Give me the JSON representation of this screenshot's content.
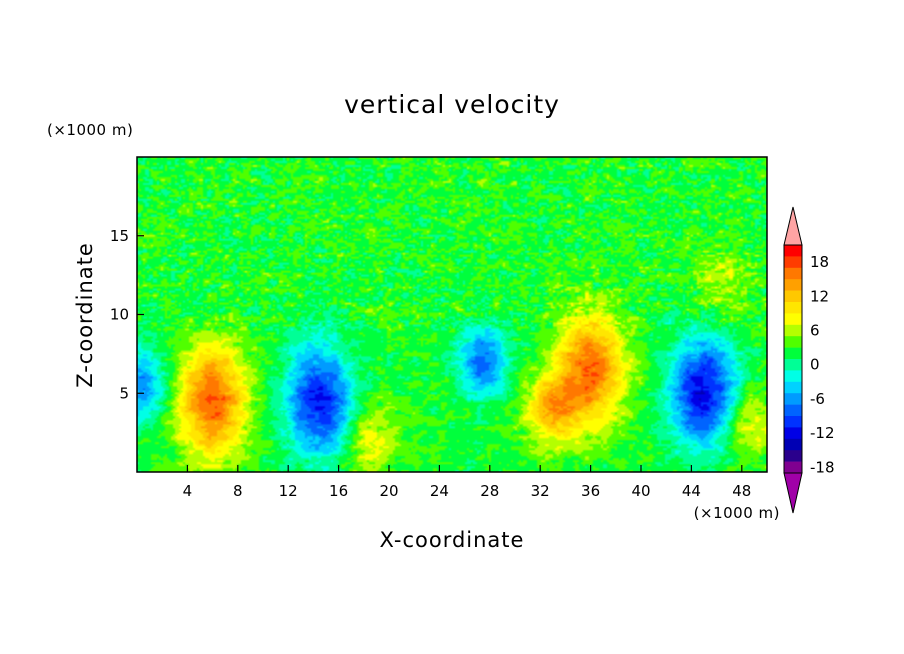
{
  "chart_data": {
    "type": "heatmap",
    "title": "vertical velocity",
    "xlabel": "X-coordinate",
    "ylabel": "Z-coordinate",
    "x_unit": "(×1000 m)",
    "y_unit": "(×1000 m)",
    "xlim": [
      0,
      50
    ],
    "ylim": [
      0,
      20
    ],
    "x_ticks": [
      4,
      8,
      12,
      16,
      20,
      24,
      28,
      32,
      36,
      40,
      44,
      48
    ],
    "y_ticks": [
      5,
      10,
      15
    ],
    "grid": false,
    "colorbar": {
      "levels": [
        -20,
        -18,
        -16,
        -14,
        -12,
        -10,
        -8,
        -6,
        -4,
        -2,
        0,
        2,
        4,
        6,
        8,
        10,
        12,
        14,
        16,
        18,
        20
      ],
      "tick_labels": [
        "18",
        "12",
        "6",
        "0",
        "-6",
        "-12",
        "-18"
      ],
      "tick_values": [
        18,
        12,
        6,
        0,
        -6,
        -12,
        -18
      ],
      "colors": [
        "#ffa4a4",
        "#ff0000",
        "#ff3c00",
        "#ff7800",
        "#ffa000",
        "#ffc800",
        "#ffe600",
        "#ffff00",
        "#b4ff00",
        "#50ff00",
        "#00ff3c",
        "#00ff96",
        "#00ffe6",
        "#00d2ff",
        "#009bff",
        "#0064ff",
        "#0032ff",
        "#0000e6",
        "#0000b4",
        "#2a008c",
        "#800090",
        "#a000a8"
      ],
      "extend": "both"
    },
    "features": [
      {
        "x": 0.3,
        "z": 5.5,
        "w": -9
      },
      {
        "x": 6,
        "z": 4.5,
        "w": 15
      },
      {
        "x": 14.5,
        "z": 4.5,
        "w": -14
      },
      {
        "x": 18.5,
        "z": 2,
        "w": 6
      },
      {
        "x": 27.5,
        "z": 7,
        "w": -10
      },
      {
        "x": 33,
        "z": 4,
        "w": 10
      },
      {
        "x": 36,
        "z": 6.5,
        "w": 14
      },
      {
        "x": 45,
        "z": 5,
        "w": -15
      },
      {
        "x": 48.5,
        "z": 3,
        "w": 6
      },
      {
        "x": 46.5,
        "z": 12,
        "w": 4
      }
    ]
  }
}
